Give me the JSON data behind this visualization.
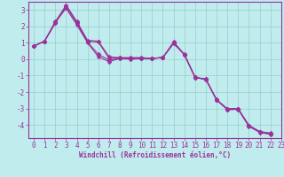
{
  "background_color": "#c0ecee",
  "grid_color": "#99cccc",
  "line_color": "#993399",
  "spine_color": "#993399",
  "xlabel": "Windchill (Refroidissement éolien,°C)",
  "xlim": [
    -0.5,
    23
  ],
  "ylim": [
    -4.8,
    3.5
  ],
  "yticks": [
    3,
    2,
    1,
    0,
    -1,
    -2,
    -3,
    -4
  ],
  "xticks": [
    0,
    1,
    2,
    3,
    4,
    5,
    6,
    7,
    8,
    9,
    10,
    11,
    12,
    13,
    14,
    15,
    16,
    17,
    18,
    19,
    20,
    21,
    22,
    23
  ],
  "series": [
    [
      0.8,
      1.1,
      2.2,
      3.3,
      2.3,
      1.15,
      1.1,
      0.15,
      0.1,
      0.1,
      0.1,
      0.05,
      0.1,
      1.05,
      0.3,
      -1.1,
      -1.2,
      -2.5,
      -3.0,
      -3.0,
      -4.05,
      -4.4,
      -4.5
    ],
    [
      0.8,
      1.1,
      2.25,
      3.1,
      2.1,
      1.0,
      0.15,
      -0.15,
      0.05,
      0.0,
      0.05,
      0.05,
      0.1,
      0.95,
      0.28,
      -1.12,
      -1.22,
      -2.48,
      -3.08,
      -3.05,
      -4.1,
      -4.45,
      -4.58
    ],
    [
      0.8,
      1.1,
      2.3,
      3.25,
      2.2,
      1.05,
      0.3,
      -0.05,
      0.05,
      0.05,
      0.05,
      0.05,
      0.1,
      1.0,
      0.28,
      -1.1,
      -1.25,
      -2.45,
      -3.05,
      -3.02,
      -4.02,
      -4.42,
      -4.54
    ],
    [
      0.8,
      1.1,
      2.2,
      3.2,
      2.25,
      1.1,
      1.05,
      0.05,
      0.08,
      0.06,
      0.06,
      0.05,
      0.12,
      1.02,
      0.29,
      -1.11,
      -1.21,
      -2.49,
      -3.03,
      -3.03,
      -4.04,
      -4.41,
      -4.52
    ]
  ],
  "marker": "D",
  "markersize": 2.5,
  "linewidth": 0.8,
  "tick_fontsize": 5.5,
  "xlabel_fontsize": 5.5
}
